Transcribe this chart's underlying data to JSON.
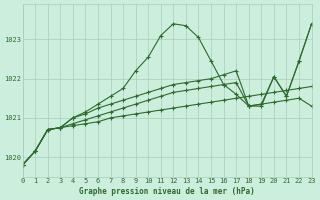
{
  "title": "Graphe pression niveau de la mer (hPa)",
  "bg_color": "#cceedd",
  "line_color": "#2d6a2d",
  "grid_color": "#aaccbb",
  "ylim": [
    1019.5,
    1023.9
  ],
  "xlim": [
    0,
    23
  ],
  "yticks": [
    1020,
    1021,
    1022,
    1023
  ],
  "xticks": [
    0,
    1,
    2,
    3,
    4,
    5,
    6,
    7,
    8,
    9,
    10,
    11,
    12,
    13,
    14,
    15,
    16,
    17,
    18,
    19,
    20,
    21,
    22,
    23
  ],
  "series": [
    [
      1019.8,
      1020.15,
      1020.7,
      1020.75,
      1020.8,
      1020.85,
      1020.9,
      1021.0,
      1021.05,
      1021.1,
      1021.15,
      1021.2,
      1021.25,
      1021.3,
      1021.35,
      1021.4,
      1021.45,
      1021.5,
      1021.55,
      1021.6,
      1021.65,
      1021.7,
      1021.75,
      1021.8
    ],
    [
      1019.8,
      1020.15,
      1020.7,
      1020.75,
      1020.85,
      1020.95,
      1021.05,
      1021.15,
      1021.25,
      1021.35,
      1021.45,
      1021.55,
      1021.65,
      1021.7,
      1021.75,
      1021.8,
      1021.85,
      1021.9,
      1021.3,
      1021.35,
      1021.4,
      1021.45,
      1021.5,
      1021.3
    ],
    [
      1019.8,
      1020.15,
      1020.7,
      1020.75,
      1021.0,
      1021.15,
      1021.35,
      1021.55,
      1021.75,
      1022.2,
      1022.55,
      1023.1,
      1023.4,
      1023.35,
      1023.05,
      1022.45,
      1021.85,
      1021.6,
      1021.3,
      1021.35,
      1022.05,
      1021.55,
      1022.45,
      1023.4
    ],
    [
      1019.8,
      1020.15,
      1020.7,
      1020.75,
      1021.0,
      1021.1,
      1021.25,
      1021.35,
      1021.45,
      1021.55,
      1021.65,
      1021.75,
      1021.85,
      1021.9,
      1021.95,
      1022.0,
      1022.1,
      1022.2,
      1021.3,
      1021.3,
      1022.05,
      1021.55,
      1022.45,
      1023.4
    ]
  ]
}
